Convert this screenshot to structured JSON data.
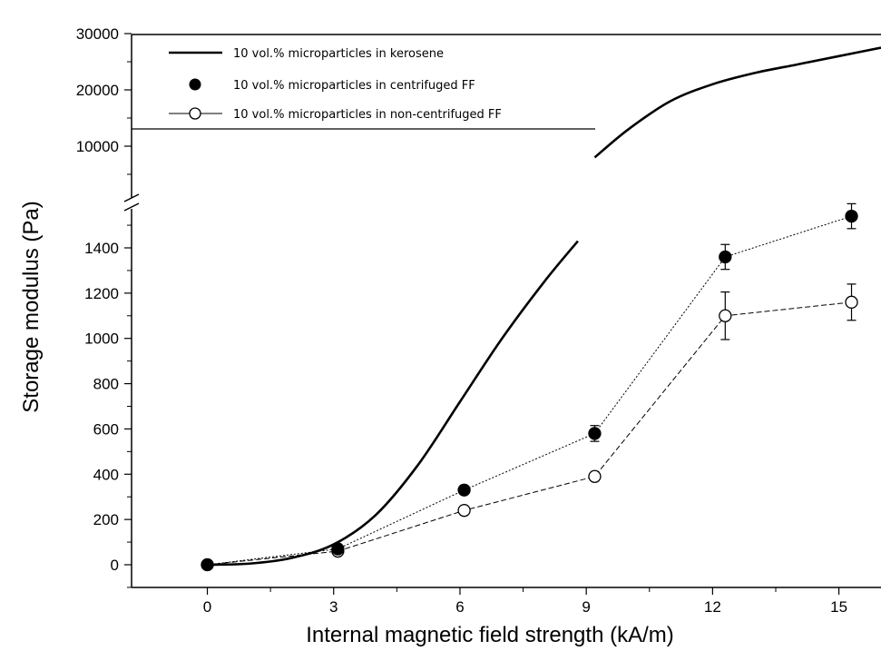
{
  "chart_data": {
    "type": "line",
    "xlabel": "Internal magnetic field strength (kA/m)",
    "ylabel": "Storage modulus (Pa)",
    "xlim": [
      -1.8,
      16
    ],
    "x_ticks": [
      0,
      3,
      6,
      9,
      12,
      15
    ],
    "y_axis": {
      "broken": true,
      "lower_range": [
        -100,
        1550
      ],
      "lower_ticks": [
        0,
        200,
        400,
        600,
        800,
        1000,
        1200,
        1400
      ],
      "upper_range": [
        5000,
        30000
      ],
      "upper_ticks": [
        10000,
        20000,
        30000
      ]
    },
    "grid": false,
    "legend_position": "top-left",
    "series": [
      {
        "name": "10 vol.% microparticles in kerosene",
        "style": "solid-line",
        "x": [
          0,
          1,
          2,
          3,
          4,
          5,
          6,
          7,
          8,
          8.8
        ],
        "y": [
          0,
          5,
          30,
          90,
          220,
          440,
          720,
          1000,
          1250,
          1430
        ],
        "x_upper": [
          9.2,
          10,
          11,
          12,
          13,
          14,
          15,
          16
        ],
        "y_upper": [
          8000,
          13000,
          18000,
          21000,
          23000,
          24500,
          26000,
          27500
        ]
      },
      {
        "name": "10 vol.% microparticles in centrifuged FF",
        "style": "filled-circle-dotted",
        "x": [
          0,
          3.1,
          6.1,
          9.2,
          12.3,
          15.3
        ],
        "y": [
          0,
          70,
          330,
          580,
          1360,
          1540
        ],
        "error": [
          0,
          10,
          10,
          35,
          55,
          55
        ]
      },
      {
        "name": "10 vol.% microparticles in non-centrifuged FF",
        "style": "open-circle-dashed",
        "x": [
          0,
          3.1,
          6.1,
          9.2,
          12.3,
          15.3
        ],
        "y": [
          0,
          60,
          240,
          390,
          1100,
          1160
        ],
        "error": [
          0,
          10,
          10,
          10,
          105,
          80
        ]
      }
    ],
    "colors": {
      "line": "#000000",
      "background": "#ffffff"
    }
  }
}
